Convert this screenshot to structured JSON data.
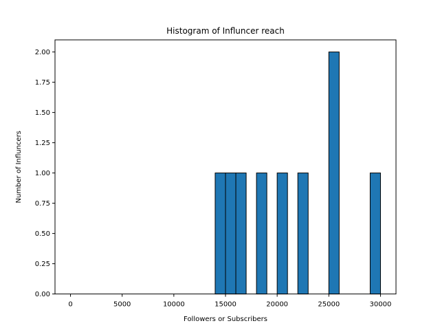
{
  "chart_data": {
    "type": "bar",
    "title": "Histogram of Influncer reach",
    "xlabel": "Followers or Subscribers",
    "ylabel": "Number of Influncers",
    "xlim": [
      -1500,
      31500
    ],
    "ylim": [
      0,
      2.1
    ],
    "xticks": [
      0,
      5000,
      10000,
      15000,
      20000,
      25000,
      30000
    ],
    "xtick_labels": [
      "0",
      "5000",
      "10000",
      "15000",
      "20000",
      "25000",
      "30000"
    ],
    "yticks": [
      0,
      0.25,
      0.5,
      0.75,
      1.0,
      1.25,
      1.5,
      1.75,
      2.0
    ],
    "ytick_labels": [
      "0.00",
      "0.25",
      "0.50",
      "0.75",
      "1.00",
      "1.25",
      "1.50",
      "1.75",
      "2.00"
    ],
    "bin_width": 1000,
    "bars": [
      {
        "x_start": 14000,
        "x_end": 15000,
        "value": 1
      },
      {
        "x_start": 15000,
        "x_end": 16000,
        "value": 1
      },
      {
        "x_start": 16000,
        "x_end": 17000,
        "value": 1
      },
      {
        "x_start": 18000,
        "x_end": 19000,
        "value": 1
      },
      {
        "x_start": 20000,
        "x_end": 21000,
        "value": 1
      },
      {
        "x_start": 22000,
        "x_end": 23000,
        "value": 1
      },
      {
        "x_start": 25000,
        "x_end": 26000,
        "value": 2
      },
      {
        "x_start": 29000,
        "x_end": 30000,
        "value": 1
      }
    ],
    "bar_color": "#1f77b4",
    "edge_color": "#000000",
    "grid": false,
    "legend": "none"
  }
}
